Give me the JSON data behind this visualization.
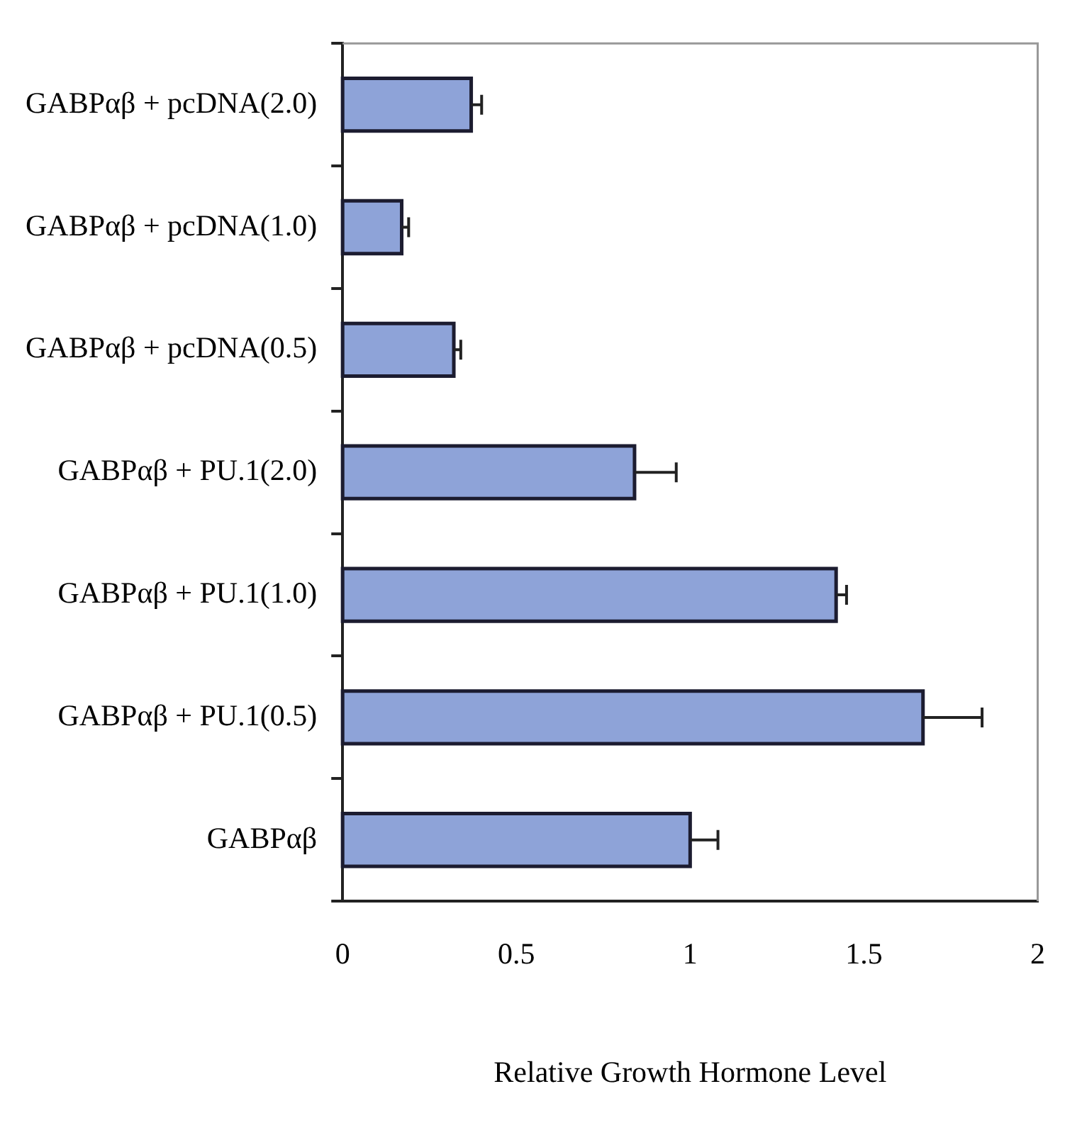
{
  "chart_data": {
    "type": "bar",
    "orientation": "horizontal",
    "xlabel": "Relative Growth Hormone Level",
    "categories": [
      "GABPαβ + pcDNA(2.0)",
      "GABPαβ + pcDNA(1.0)",
      "GABPαβ + pcDNA(0.5)",
      "GABPαβ + PU.1(2.0)",
      "GABPαβ + PU.1(1.0)",
      "GABPαβ + PU.1(0.5)",
      "GABPαβ"
    ],
    "values": [
      0.37,
      0.17,
      0.32,
      0.84,
      1.42,
      1.67,
      1.0
    ],
    "errors": [
      0.03,
      0.02,
      0.02,
      0.12,
      0.03,
      0.17,
      0.08
    ],
    "color": "#8ea3d8",
    "xlim": [
      0,
      2
    ],
    "xticks": [
      0,
      0.5,
      1,
      1.5,
      2
    ],
    "legend": false
  }
}
